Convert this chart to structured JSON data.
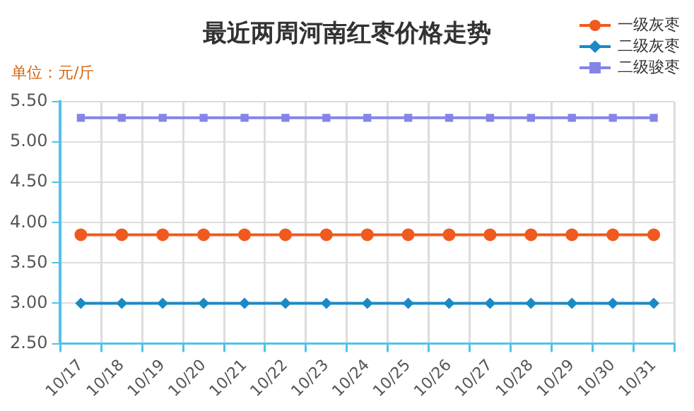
{
  "chart_data": {
    "type": "line",
    "title": "最近两周河南红枣价格走势",
    "ylabel": "单位：元/斤",
    "categories": [
      "10/17",
      "10/18",
      "10/19",
      "10/20",
      "10/21",
      "10/22",
      "10/23",
      "10/24",
      "10/25",
      "10/26",
      "10/27",
      "10/28",
      "10/29",
      "10/30",
      "10/31"
    ],
    "series": [
      {
        "name": "一级灰枣",
        "color": "#f05a1e",
        "marker": "circle",
        "values": [
          3.85,
          3.85,
          3.85,
          3.85,
          3.85,
          3.85,
          3.85,
          3.85,
          3.85,
          3.85,
          3.85,
          3.85,
          3.85,
          3.85,
          3.85
        ]
      },
      {
        "name": "二级灰枣",
        "color": "#1a8ac6",
        "marker": "diamond",
        "values": [
          3.0,
          3.0,
          3.0,
          3.0,
          3.0,
          3.0,
          3.0,
          3.0,
          3.0,
          3.0,
          3.0,
          3.0,
          3.0,
          3.0,
          3.0
        ]
      },
      {
        "name": "二级骏枣",
        "color": "#8585e8",
        "marker": "square",
        "values": [
          5.3,
          5.3,
          5.3,
          5.3,
          5.3,
          5.3,
          5.3,
          5.3,
          5.3,
          5.3,
          5.3,
          5.3,
          5.3,
          5.3,
          5.3
        ]
      }
    ],
    "ylim": [
      2.5,
      5.5
    ],
    "yticks": [
      {
        "value": 2.5,
        "label": "2.50"
      },
      {
        "value": 3,
        "label": "3.00"
      },
      {
        "value": 3.5,
        "label": "3.50"
      },
      {
        "value": 4,
        "label": "4.00"
      },
      {
        "value": 4.5,
        "label": "4.50"
      },
      {
        "value": 5,
        "label": "5.00"
      },
      {
        "value": 5.5,
        "label": "5.50"
      }
    ],
    "grid": true,
    "legend": "top right",
    "line_style": "solid"
  }
}
